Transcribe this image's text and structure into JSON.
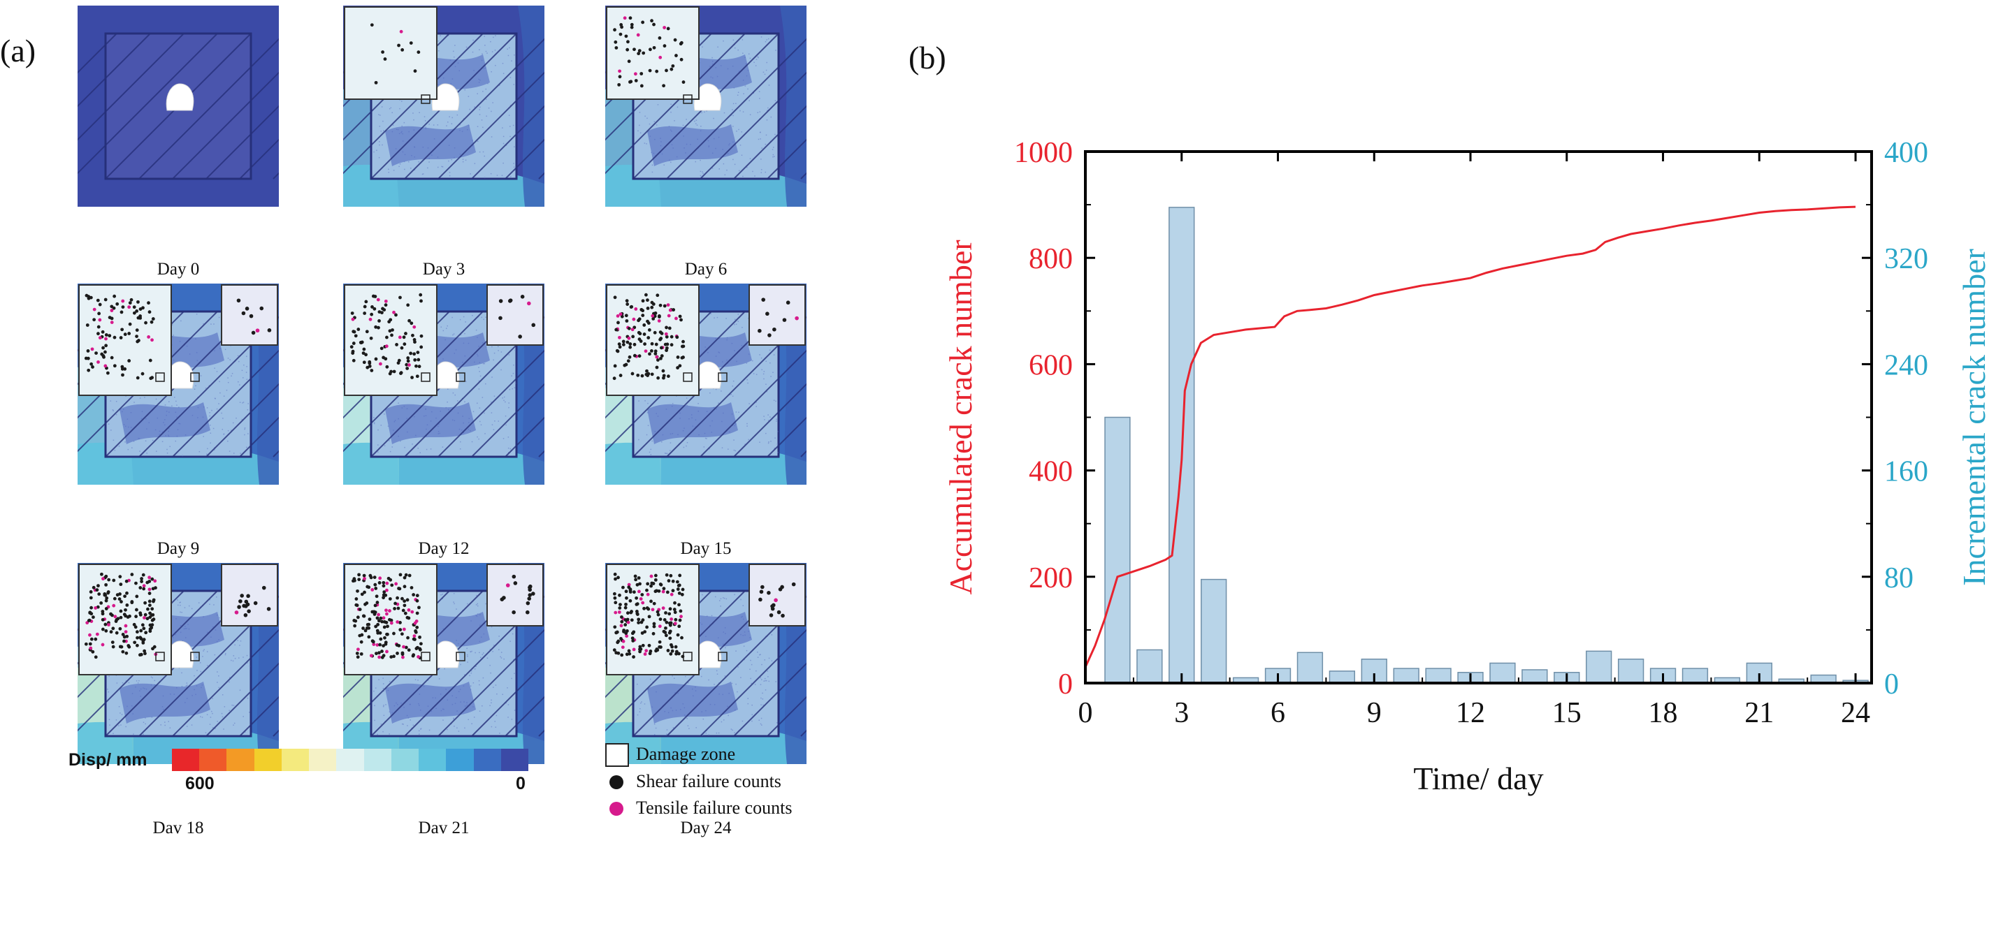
{
  "panel_a": {
    "label": "(a)",
    "tiles": [
      {
        "day": "Day 0"
      },
      {
        "day": "Day 3"
      },
      {
        "day": "Day 6"
      },
      {
        "day": "Day 9"
      },
      {
        "day": "Day 12"
      },
      {
        "day": "Day 15"
      },
      {
        "day": "Dav 18"
      },
      {
        "day": "Dav 21"
      },
      {
        "day": "Day 24"
      }
    ],
    "colorbar": {
      "title": "Disp/ mm",
      "min_label": "600",
      "max_label": "0",
      "colors": [
        "#e8272a",
        "#ef5a2a",
        "#f39a25",
        "#f2cf2b",
        "#f4ea7e",
        "#f5f2c6",
        "#dff2f1",
        "#bfe8ec",
        "#8fd7e2",
        "#5ec2de",
        "#3d9fd8",
        "#3a6dc1",
        "#3b4aa6"
      ]
    },
    "legend": {
      "damage_zone": "Damage zone",
      "shear": "Shear failure counts",
      "tensile": "Tensile failure counts"
    }
  },
  "chart_data": {
    "type": "bar+line",
    "panel_label": "(b)",
    "xlabel": "Time/ day",
    "ylabel_left": "Accumulated crack number",
    "ylabel_right": "Incremental crack number",
    "xlim": [
      0,
      24.5
    ],
    "ylim_left": [
      0,
      1000
    ],
    "ylim_right": [
      0,
      400
    ],
    "xticks": [
      0,
      3,
      6,
      9,
      12,
      15,
      18,
      21,
      24
    ],
    "yticks_left": [
      0,
      200,
      400,
      600,
      800,
      1000
    ],
    "yticks_right": [
      0,
      80,
      160,
      240,
      320,
      400
    ],
    "colors": {
      "line": "#e8232e",
      "bar_fill": "#b8d4e8",
      "bar_edge": "#6f8fa8",
      "right_axis": "#2aa6c8"
    },
    "series": [
      {
        "name": "Incremental crack number",
        "axis": "right",
        "x": [
          1,
          2,
          3,
          4,
          5,
          6,
          7,
          8,
          9,
          10,
          11,
          12,
          13,
          14,
          15,
          16,
          17,
          18,
          19,
          20,
          21,
          22,
          23,
          24
        ],
        "values": [
          200,
          25,
          358,
          78,
          4,
          11,
          23,
          9,
          18,
          11,
          11,
          8,
          15,
          10,
          8,
          24,
          18,
          11,
          11,
          4,
          15,
          3,
          6,
          2
        ]
      },
      {
        "name": "Accumulated crack number",
        "axis": "left",
        "x": [
          0,
          0.3,
          0.6,
          1.0,
          1.5,
          2.0,
          2.5,
          2.7,
          2.9,
          3.0,
          3.1,
          3.3,
          3.6,
          4.0,
          4.5,
          5.0,
          5.5,
          5.9,
          6.2,
          6.6,
          7.0,
          7.5,
          8.0,
          8.5,
          9.0,
          9.5,
          10.0,
          10.5,
          11.0,
          11.5,
          12.0,
          12.5,
          13.0,
          13.5,
          14.0,
          14.5,
          15.0,
          15.5,
          15.9,
          16.2,
          16.6,
          17.0,
          17.5,
          18.0,
          18.5,
          19.0,
          19.5,
          20.0,
          20.5,
          21.0,
          21.5,
          22.0,
          22.5,
          23.0,
          23.5,
          24.0
        ],
        "values": [
          30,
          70,
          120,
          200,
          210,
          220,
          232,
          240,
          350,
          420,
          550,
          600,
          640,
          655,
          660,
          665,
          668,
          670,
          690,
          700,
          702,
          705,
          712,
          720,
          730,
          736,
          742,
          748,
          752,
          757,
          762,
          772,
          780,
          786,
          792,
          798,
          804,
          808,
          815,
          830,
          838,
          845,
          850,
          855,
          861,
          866,
          870,
          875,
          880,
          885,
          888,
          890,
          891,
          893,
          895,
          896
        ]
      }
    ]
  }
}
